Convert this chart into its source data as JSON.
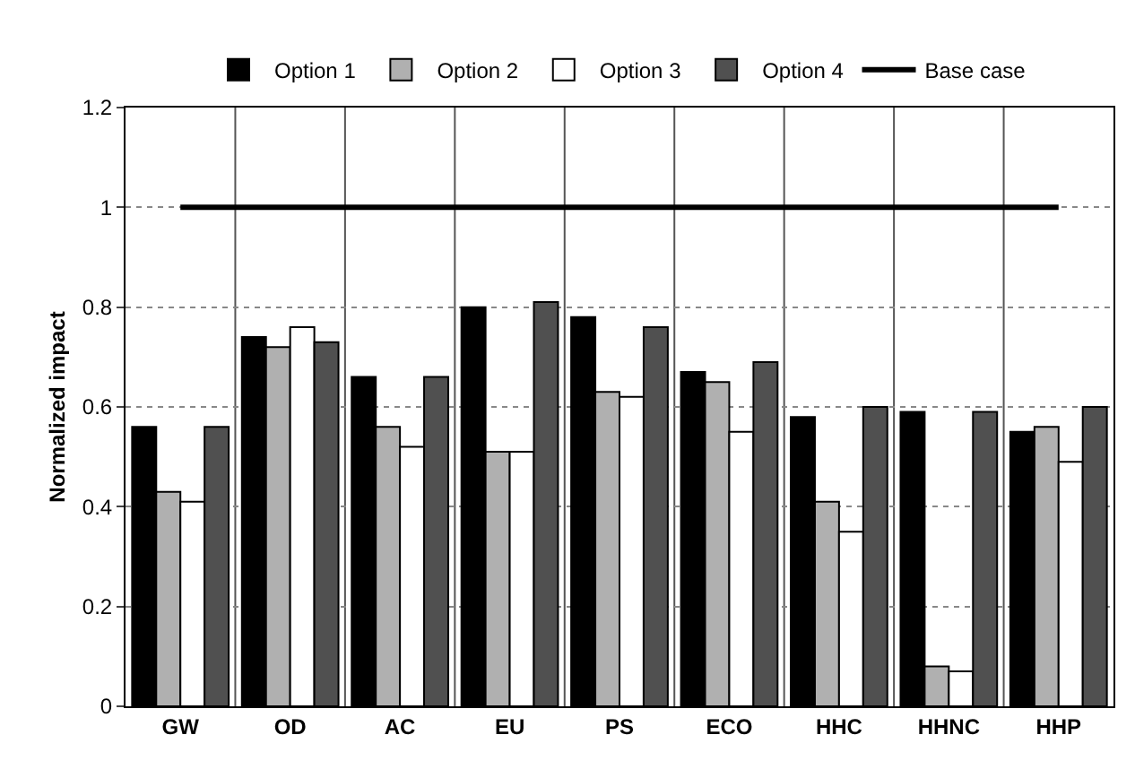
{
  "chart_data": {
    "type": "bar",
    "ylabel": "Normalized impact",
    "categories": [
      "GW",
      "OD",
      "AC",
      "EU",
      "PS",
      "ECO",
      "HHC",
      "HHNC",
      "HHP"
    ],
    "series": [
      {
        "name": "Option 1",
        "color": "#000000",
        "values": [
          0.56,
          0.74,
          0.66,
          0.8,
          0.78,
          0.67,
          0.58,
          0.59,
          0.55
        ]
      },
      {
        "name": "Option 2",
        "color": "#b0b0b0",
        "values": [
          0.43,
          0.72,
          0.56,
          0.51,
          0.63,
          0.65,
          0.41,
          0.08,
          0.56
        ]
      },
      {
        "name": "Option 3",
        "color": "#ffffff",
        "values": [
          0.41,
          0.76,
          0.52,
          0.51,
          0.62,
          0.55,
          0.35,
          0.07,
          0.49
        ]
      },
      {
        "name": "Option 4",
        "color": "#505050",
        "values": [
          0.56,
          0.73,
          0.66,
          0.81,
          0.76,
          0.69,
          0.6,
          0.59,
          0.6
        ]
      },
      {
        "name": "Base case",
        "type": "line",
        "color": "#000000",
        "marker": "none",
        "values": [
          1,
          1,
          1,
          1,
          1,
          1,
          1,
          1,
          1
        ]
      }
    ],
    "ylim": [
      0,
      1.2
    ],
    "yticks": [
      0,
      0.2,
      0.4,
      0.6,
      0.8,
      1,
      1.2
    ],
    "grid": true,
    "legend": "top"
  }
}
